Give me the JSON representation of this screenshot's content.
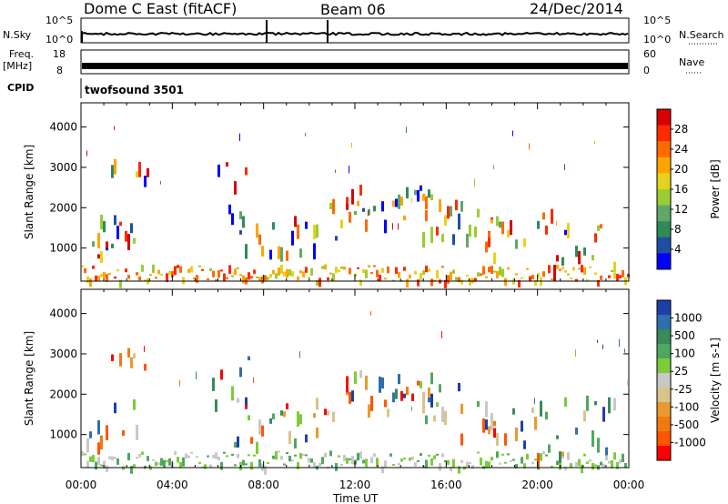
{
  "header": {
    "station": "Dome C East (fitACF)",
    "beam": "Beam 06",
    "date": "24/Dec/2014"
  },
  "nsky": {
    "label": "N.Sky",
    "top": "10^5",
    "bottom": "10^0",
    "right_top": "10^5",
    "right_bottom": "10^0"
  },
  "nsearch": {
    "label": "N.Search"
  },
  "freq": {
    "label_line1": "Freq.",
    "label_line2": "[MHz]",
    "top": "18",
    "bottom": "8",
    "right_top": "60",
    "right_bottom": "0"
  },
  "nave": {
    "label": "Nave"
  },
  "cpid": {
    "label": "CPID",
    "value": "twofsound 3501"
  },
  "colors": {
    "power": [
      "#0000ff",
      "#1f4fa3",
      "#2e8b57",
      "#5fa86a",
      "#9acd32",
      "#e6d21e",
      "#ffa500",
      "#ff6a00",
      "#ff2a00",
      "#d80000"
    ],
    "velocity": [
      "#1f3fa8",
      "#2f6fb0",
      "#3a8a5a",
      "#4fa860",
      "#7ccc3a",
      "#c8c8c8",
      "#d8c48a",
      "#e89a30",
      "#f07a10",
      "#ff5500",
      "#ff0000"
    ]
  },
  "chart_data": [
    {
      "type": "heatmap",
      "name": "power-panel",
      "xlabel": "",
      "ylabel": "Slant Range [km]",
      "xlim": [
        0,
        24
      ],
      "ylim": [
        180,
        4600
      ],
      "yticks": [
        1000,
        2000,
        3000,
        4000
      ],
      "colorbar": {
        "label": "Power [dB]",
        "range": [
          0,
          32
        ],
        "ticks": [
          "4",
          "8",
          "12",
          "16",
          "20",
          "24",
          "28"
        ]
      }
    },
    {
      "type": "heatmap",
      "name": "velocity-panel",
      "xlabel": "Time UT",
      "ylabel": "Slant Range [km]",
      "xlim": [
        0,
        24
      ],
      "ylim": [
        180,
        4600
      ],
      "xticks": [
        "00:00",
        "04:00",
        "08:00",
        "12:00",
        "16:00",
        "20:00",
        "00:00"
      ],
      "yticks": [
        1000,
        2000,
        3000,
        4000
      ],
      "colorbar": {
        "label": "Velocity [m s-1]",
        "ticks": [
          "1000",
          "500",
          "100",
          "25",
          "-25",
          "-100",
          "-500",
          "-1000"
        ]
      }
    }
  ]
}
